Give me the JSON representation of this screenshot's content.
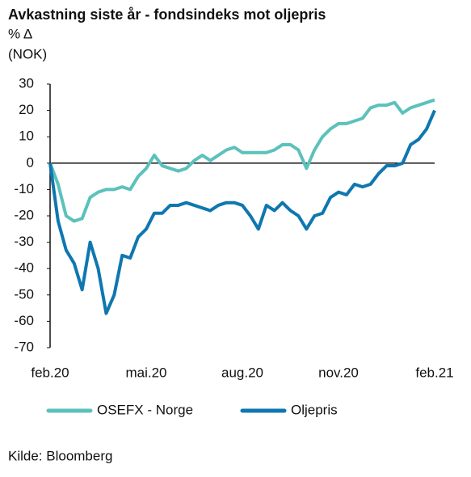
{
  "chart_data": {
    "type": "line",
    "title": "Avkastning siste år - fondsindeks mot oljepris",
    "y_label": "% Δ",
    "y_unit_label": "(NOK)",
    "source": "Kilde: Bloomberg",
    "x": [
      0,
      0.25,
      0.5,
      0.75,
      1,
      1.25,
      1.5,
      1.75,
      2,
      2.25,
      2.5,
      2.75,
      3,
      3.25,
      3.5,
      3.75,
      4,
      4.25,
      4.5,
      4.75,
      5,
      5.25,
      5.5,
      5.75,
      6,
      6.25,
      6.5,
      6.75,
      7,
      7.25,
      7.5,
      7.75,
      8,
      8.25,
      8.5,
      8.75,
      9,
      9.25,
      9.5,
      9.75,
      10,
      10.25,
      10.5,
      10.75,
      11,
      11.25,
      11.5,
      11.75,
      12
    ],
    "xlim": [
      0,
      12
    ],
    "xticks": [
      {
        "value": 0,
        "label": "feb.20"
      },
      {
        "value": 3,
        "label": "mai.20"
      },
      {
        "value": 6,
        "label": "aug.20"
      },
      {
        "value": 9,
        "label": "nov.20"
      },
      {
        "value": 12,
        "label": "feb.21"
      }
    ],
    "ylim": [
      -70,
      30
    ],
    "yticks": [
      -70,
      -60,
      -50,
      -40,
      -30,
      -20,
      -10,
      0,
      10,
      20,
      30
    ],
    "grid": false,
    "legend": "bottom",
    "series": [
      {
        "name": "OSEFX - Norge",
        "color": "#5cc1bb",
        "values": [
          0,
          -8,
          -20,
          -22,
          -21,
          -13,
          -11,
          -10,
          -10,
          -9,
          -10,
          -5,
          -2,
          3,
          -1,
          -2,
          -3,
          -2,
          1,
          3,
          1,
          3,
          5,
          6,
          4,
          4,
          4,
          4,
          5,
          7,
          7,
          5,
          -2,
          5,
          10,
          13,
          15,
          15,
          16,
          17,
          21,
          22,
          22,
          23,
          19,
          21,
          22,
          23,
          24
        ]
      },
      {
        "name": "Oljepris",
        "color": "#0f77b0",
        "values": [
          0,
          -22,
          -33,
          -38,
          -48,
          -30,
          -40,
          -57,
          -50,
          -35,
          -36,
          -28,
          -25,
          -19,
          -19,
          -16,
          -16,
          -15,
          -16,
          -17,
          -18,
          -16,
          -15,
          -15,
          -16,
          -20,
          -25,
          -16,
          -18,
          -15,
          -18,
          -20,
          -25,
          -20,
          -19,
          -13,
          -11,
          -12,
          -8,
          -9,
          -8,
          -4,
          -1,
          -1,
          0,
          7,
          9,
          13,
          20
        ]
      }
    ]
  }
}
